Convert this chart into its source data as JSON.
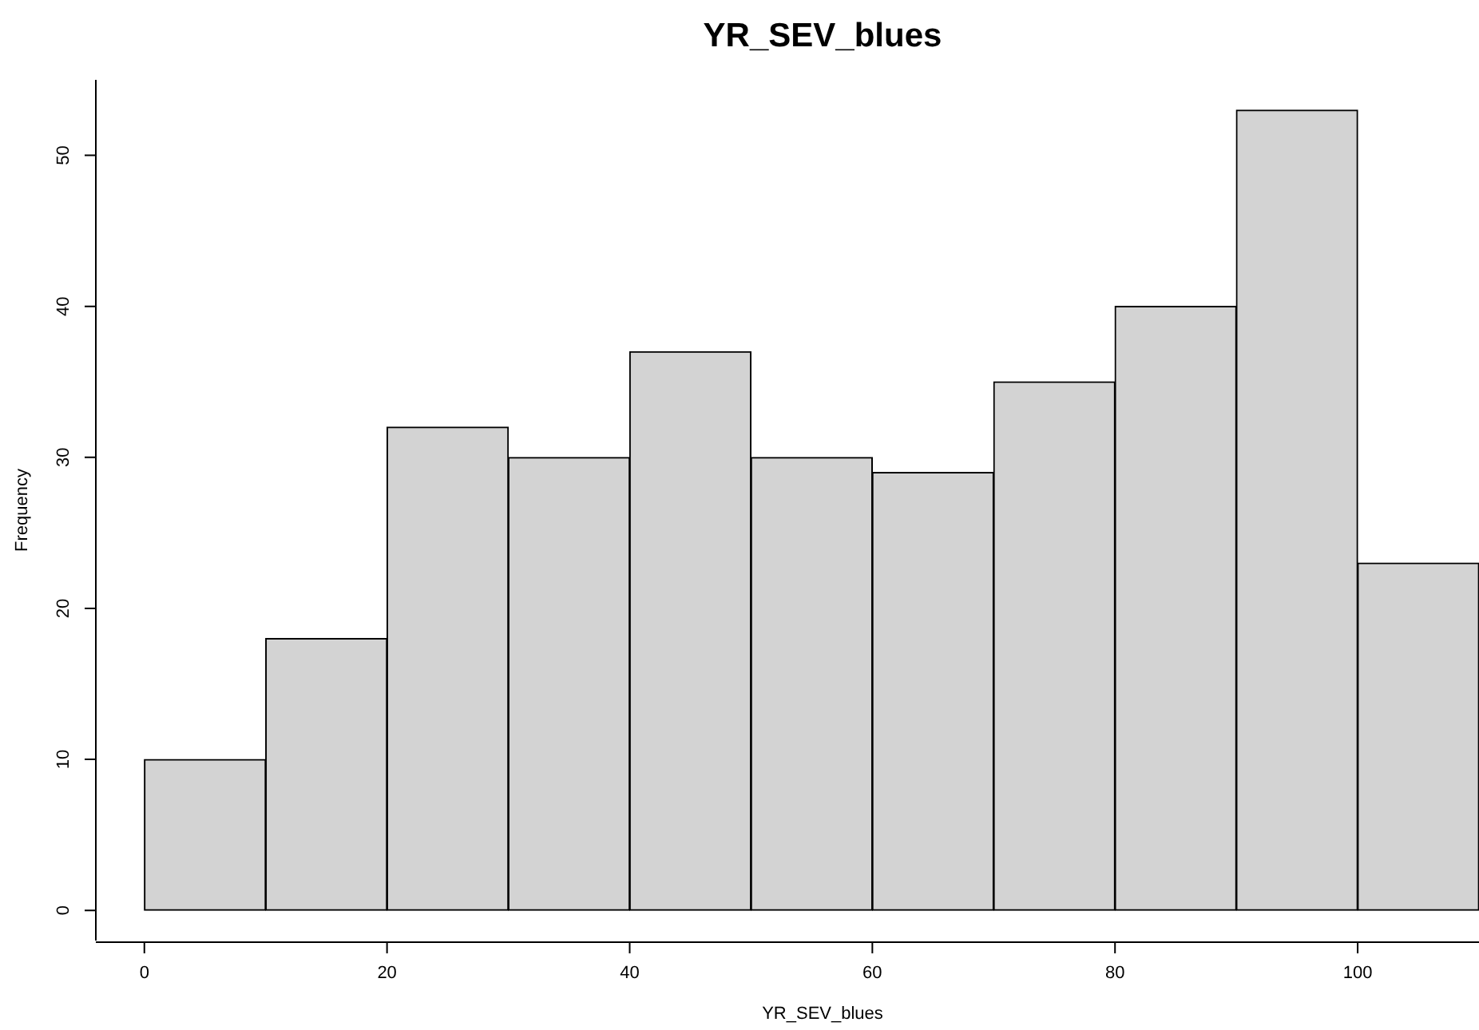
{
  "chart_data": {
    "type": "histogram",
    "title": "YR_SEV_blues",
    "xlabel": "YR_SEV_blues",
    "ylabel": "Frequency",
    "bins": [
      0,
      10,
      20,
      30,
      40,
      50,
      60,
      70,
      80,
      90,
      100,
      110
    ],
    "values": [
      10,
      18,
      32,
      30,
      37,
      30,
      29,
      35,
      40,
      53,
      23
    ],
    "color": "#d3d3d3",
    "xlim": [
      -4,
      110
    ],
    "ylim": [
      -2,
      55
    ],
    "xticks": [
      0,
      20,
      40,
      60,
      80,
      100
    ],
    "yticks": [
      0,
      10,
      20,
      30,
      40,
      50
    ]
  }
}
